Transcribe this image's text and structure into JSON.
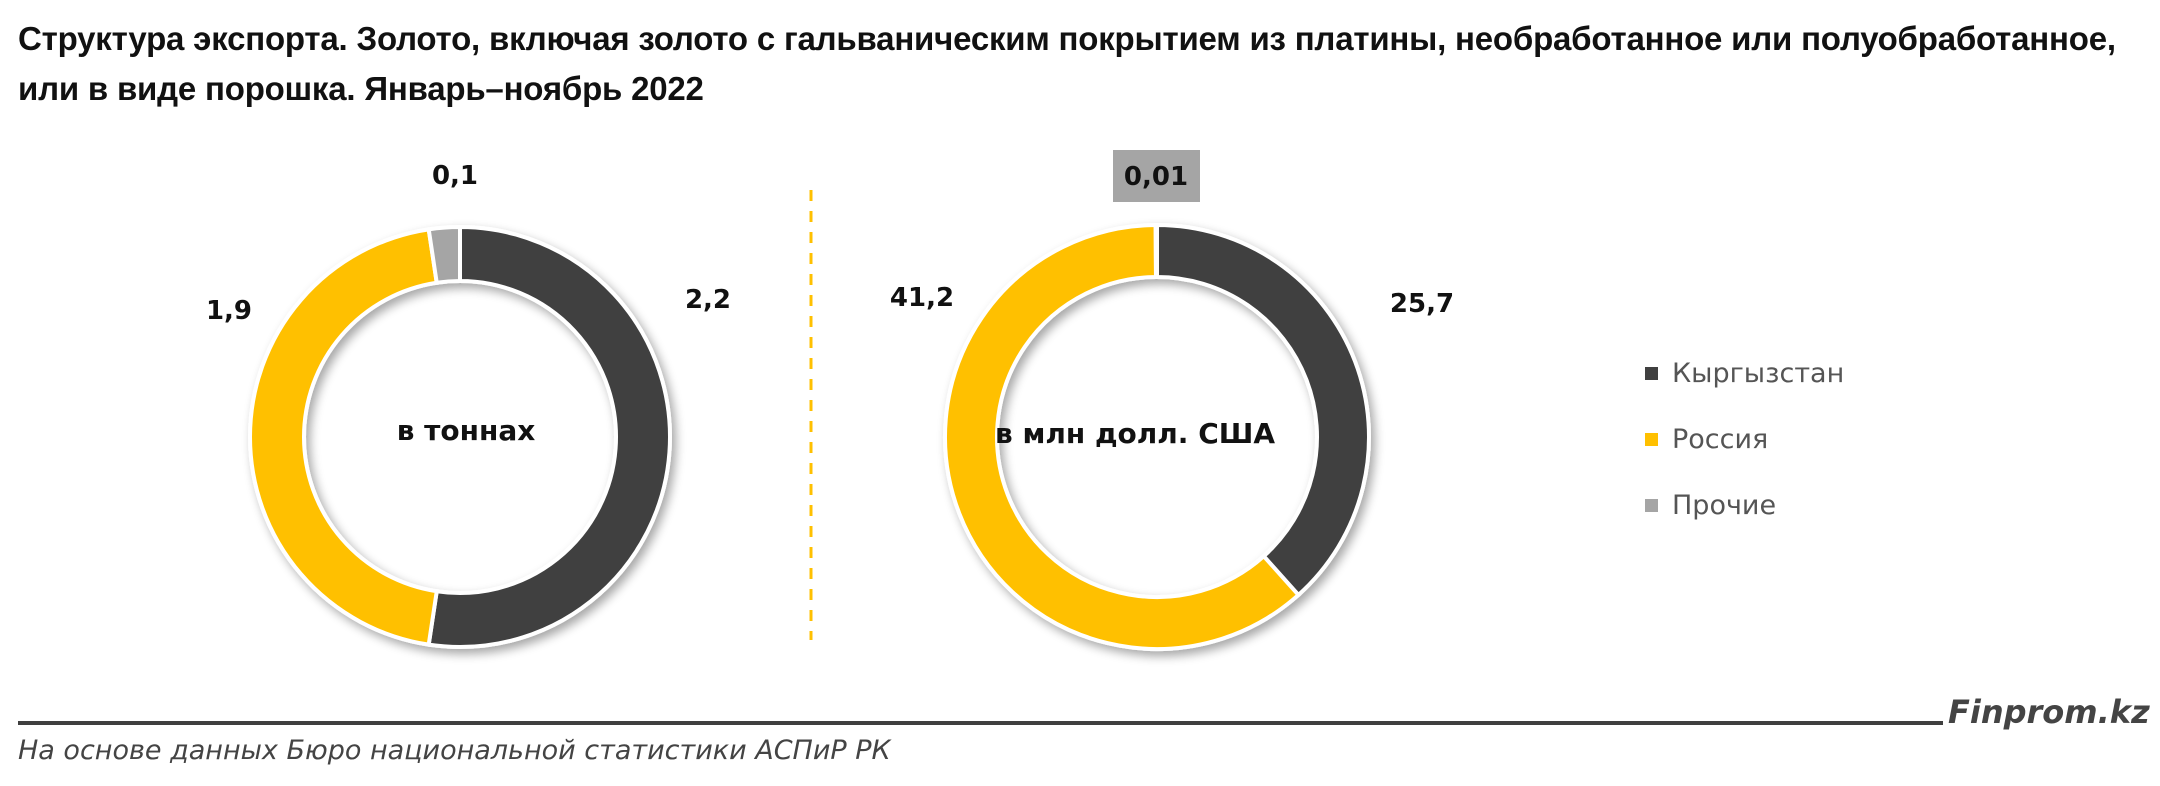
{
  "title": "Структура экспорта. Золото, включая золото с гальваническим покрытием из платины, необработанное или полуобработанное, или в виде порошка. Январь–ноябрь 2022",
  "colors": {
    "kyrgyzstan": "#404040",
    "russia": "#FFC000",
    "other": "#A5A5A5",
    "divider": "#FFC000"
  },
  "charts": [
    {
      "center_label": "в тоннах",
      "labels": {
        "kyrgyzstan": "2,2",
        "russia": "1,9",
        "other": "0,1"
      }
    },
    {
      "center_label": "в млн долл. США",
      "labels": {
        "kyrgyzstan": "25,7",
        "russia": "41,2",
        "other": "0,01"
      }
    }
  ],
  "legend": [
    {
      "label": "Кыргызстан",
      "color": "#404040"
    },
    {
      "label": "Россия",
      "color": "#FFC000"
    },
    {
      "label": "Прочие",
      "color": "#A5A5A5"
    }
  ],
  "footer": {
    "brand": "Finprom.kz",
    "source": "На основе данных Бюро национальной статистики АСПиР РК"
  },
  "chart_data": [
    {
      "type": "pie",
      "subtype": "donut",
      "title": "в тоннах",
      "categories": [
        "Кыргызстан",
        "Россия",
        "Прочие"
      ],
      "values": [
        2.2,
        1.9,
        0.1
      ],
      "unit": "тонн",
      "legend_position": "right"
    },
    {
      "type": "pie",
      "subtype": "donut",
      "title": "в млн долл. США",
      "categories": [
        "Кыргызстан",
        "Россия",
        "Прочие"
      ],
      "values": [
        25.7,
        41.2,
        0.01
      ],
      "unit": "млн долл. США",
      "legend_position": "right"
    }
  ]
}
